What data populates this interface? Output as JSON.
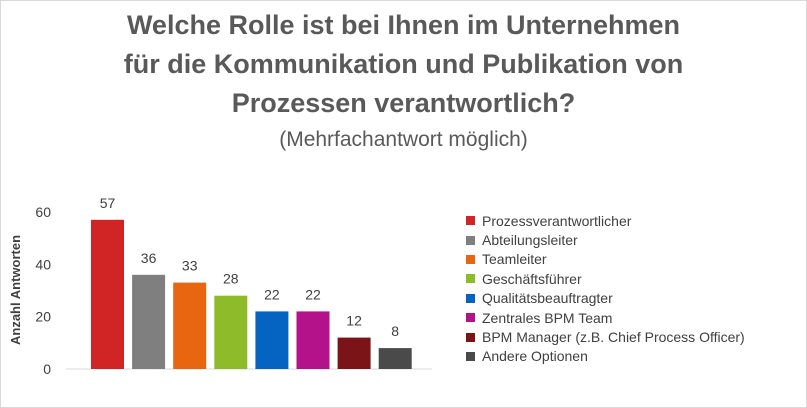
{
  "title_lines": [
    "Welche Rolle ist bei Ihnen im Unternehmen",
    "für die Kommunikation und Publikation von",
    "Prozessen verantwortlich?"
  ],
  "subtitle": "(Mehrfachantwort möglich)",
  "chart_data": {
    "type": "bar",
    "ylabel": "Anzahl Antworten",
    "ylim": [
      0,
      60
    ],
    "yticks": [
      0,
      20,
      40,
      60
    ],
    "grid": false,
    "legend_position": "right",
    "series": [
      {
        "name": "Prozessverantwortlicher",
        "value": 57,
        "color": "#d12424"
      },
      {
        "name": "Abteilungsleiter",
        "value": 36,
        "color": "#7f7f7f"
      },
      {
        "name": "Teamleiter",
        "value": 33,
        "color": "#e8660f"
      },
      {
        "name": "Geschäftsführer",
        "value": 28,
        "color": "#8dbb2a"
      },
      {
        "name": "Qualitätsbeauftragter",
        "value": 22,
        "color": "#0563c1"
      },
      {
        "name": "Zentrales BPM Team",
        "value": 22,
        "color": "#b3128a"
      },
      {
        "name": "BPM Manager (z.B. Chief Process Officer)",
        "value": 12,
        "color": "#7a1417"
      },
      {
        "name": "Andere Optionen",
        "value": 8,
        "color": "#4a4a4a"
      }
    ]
  }
}
